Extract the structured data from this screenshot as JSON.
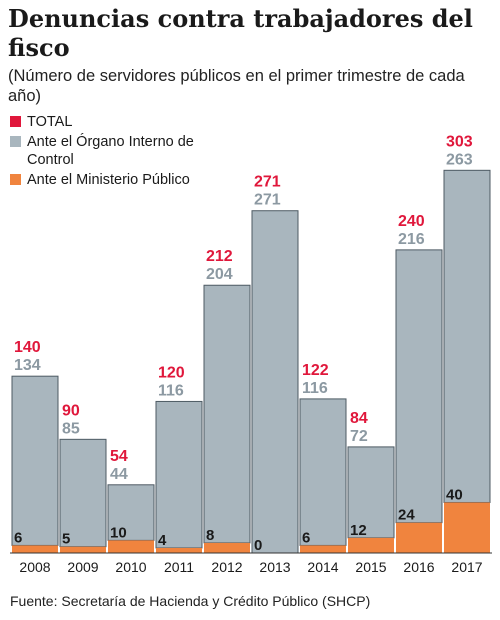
{
  "header": {
    "title": "Denuncias contra trabajadores del fisco",
    "subtitle": "(Número de servidores públicos en el primer trimestre de cada año)"
  },
  "legend": [
    {
      "label": "TOTAL",
      "color": "#e0173b"
    },
    {
      "label": "Ante el Órgano Interno de Control",
      "color": "#a9b6be"
    },
    {
      "label": "Ante el Ministerio Público",
      "color": "#f0843e"
    }
  ],
  "chart_data": {
    "type": "bar",
    "stacked": true,
    "categories": [
      "2008",
      "2009",
      "2010",
      "2011",
      "2012",
      "2013",
      "2014",
      "2015",
      "2016",
      "2017"
    ],
    "series": [
      {
        "name": "TOTAL",
        "values": [
          140,
          90,
          54,
          120,
          212,
          271,
          122,
          84,
          240,
          303
        ]
      },
      {
        "name": "Ante el Órgano Interno de Control",
        "values": [
          134,
          85,
          44,
          116,
          204,
          271,
          116,
          72,
          216,
          263
        ]
      },
      {
        "name": "Ante el Ministerio Público",
        "values": [
          6,
          5,
          10,
          4,
          8,
          0,
          6,
          12,
          24,
          40
        ]
      }
    ],
    "colors": {
      "total": "#e0173b",
      "oic": "#a9b6be",
      "mp": "#f0843e"
    }
  },
  "footer": {
    "source": "Fuente: Secretaría de Hacienda y Crédito Público (SHCP)"
  }
}
